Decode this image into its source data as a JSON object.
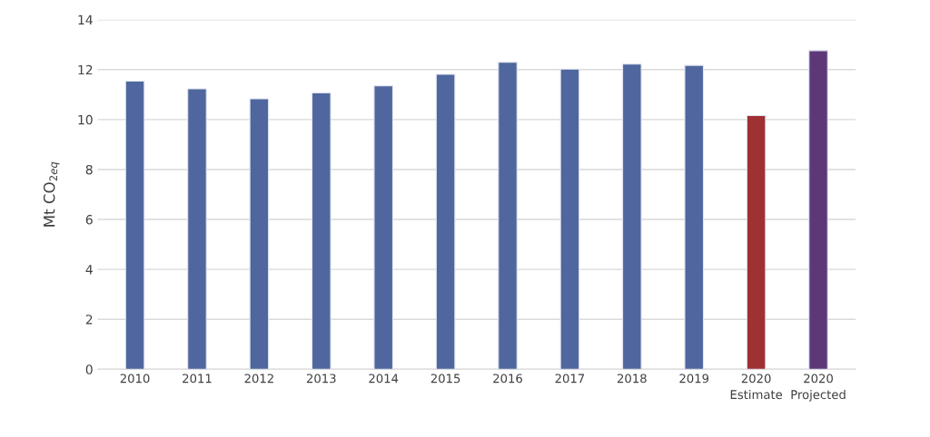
{
  "chart_data": {
    "type": "bar",
    "ylabel": "Mt CO$_{2eq}$",
    "categories": [
      "2010",
      "2011",
      "2012",
      "2013",
      "2014",
      "2015",
      "2016",
      "2017",
      "2018",
      "2019",
      "2020\nEstimate",
      "2020\nProjected"
    ],
    "values": [
      11.54,
      11.23,
      10.83,
      11.07,
      11.35,
      11.81,
      12.29,
      12.02,
      12.22,
      12.17,
      10.16,
      12.76
    ],
    "colors": [
      "#4f679e",
      "#4f679e",
      "#4f679e",
      "#4f679e",
      "#4f679e",
      "#4f679e",
      "#4f679e",
      "#4f679e",
      "#4f679e",
      "#4f679e",
      "#9e3132",
      "#5e3779"
    ],
    "ylim": [
      0,
      14
    ],
    "yticks": [
      0,
      2,
      4,
      6,
      8,
      10,
      12,
      14
    ],
    "grid": "y",
    "legend": false
  }
}
